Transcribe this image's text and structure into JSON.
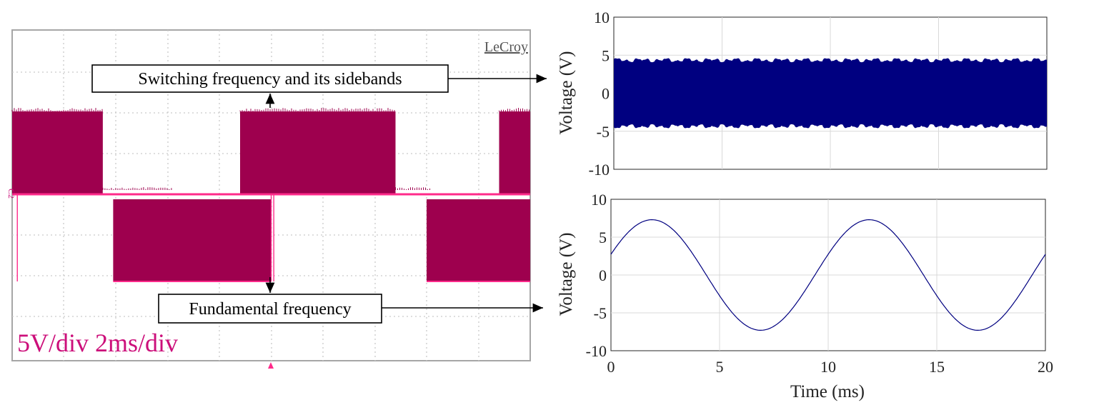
{
  "scope": {
    "brand": "LeCroy",
    "channel_label": "C2",
    "scale_text": "5V/div 2ms/div",
    "waveform_color": "#9e004e",
    "ref_line_color": "#ff2a8a",
    "scale_text_color": "#cc0f7a",
    "chart_data": {
      "type": "line",
      "title": "",
      "description_fields_omitted": true,
      "x_unit_per_div": "2ms",
      "y_unit_per_div": "5V",
      "segments": [
        {
          "t_start_ms": 0.0,
          "t_end_ms": 3.5,
          "level": "positive"
        },
        {
          "t_start_ms": 3.5,
          "t_end_ms": 6.2,
          "level": "zero"
        },
        {
          "t_start_ms": 3.9,
          "t_end_ms": 10.0,
          "level": "negative"
        },
        {
          "t_start_ms": 8.8,
          "t_end_ms": 14.8,
          "level": "positive"
        },
        {
          "t_start_ms": 14.8,
          "t_end_ms": 16.2,
          "level": "zero"
        },
        {
          "t_start_ms": 16.0,
          "t_end_ms": 20.0,
          "level": "negative"
        },
        {
          "t_start_ms": 18.8,
          "t_end_ms": 20.0,
          "level": "positive"
        }
      ]
    }
  },
  "annotations": {
    "top_label": "Switching frequency and its sidebands",
    "bottom_label": "Fundamental frequency"
  },
  "plot_top": {
    "chart_data": {
      "type": "area",
      "ylabel": "Voltage (V)",
      "xlim": [
        0,
        20
      ],
      "ylim": [
        -10,
        10
      ],
      "yticks": [
        10,
        5,
        0,
        -5,
        -10
      ],
      "xticks": [
        0,
        5,
        10,
        15,
        20
      ],
      "envelope_base": 4.1,
      "envelope_ripple": 0.6,
      "color": "#000080",
      "grid": true
    }
  },
  "plot_bottom": {
    "chart_data": {
      "type": "line",
      "xlabel": "Time (ms)",
      "ylabel": "Voltage (V)",
      "xlim": [
        0,
        20
      ],
      "ylim": [
        -10,
        10
      ],
      "yticks": [
        10,
        5,
        0,
        -5,
        -10
      ],
      "xticks": [
        0,
        5,
        10,
        15,
        20
      ],
      "amplitude": 7.3,
      "frequency_hz": 100,
      "phase_deg": 22,
      "color": "#000080",
      "grid": true
    }
  }
}
